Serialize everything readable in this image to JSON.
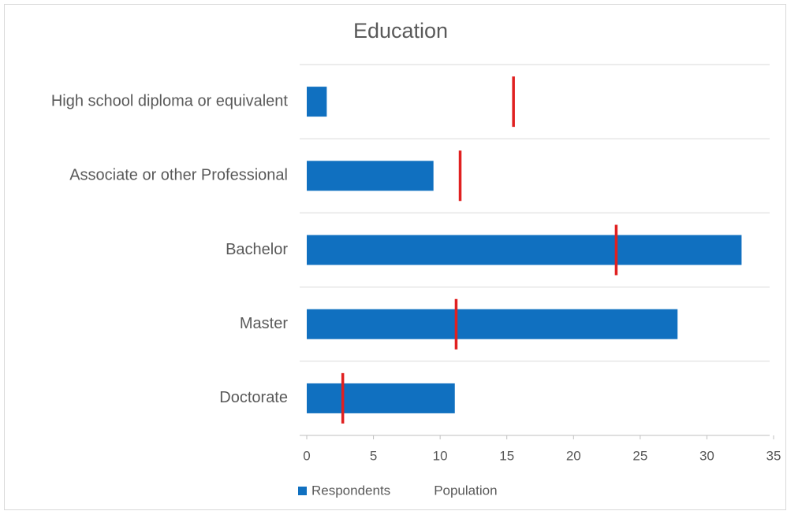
{
  "chart_data": {
    "type": "bar",
    "orientation": "horizontal",
    "title": "Education",
    "categories": [
      "High school diploma or equivalent",
      "Associate or other Professional",
      "Bachelor",
      "Master",
      "Doctorate"
    ],
    "series": [
      {
        "name": "Respondents",
        "type": "bar",
        "color": "#1070c0",
        "values": [
          1.5,
          9.5,
          32.6,
          27.8,
          11.1
        ]
      },
      {
        "name": "Population",
        "type": "marker",
        "color": "#e02020",
        "values": [
          15.5,
          11.5,
          23.2,
          11.2,
          2.7
        ]
      }
    ],
    "xlim": [
      0,
      35
    ],
    "xticks": [
      0,
      5,
      10,
      15,
      20,
      25,
      30,
      35
    ],
    "grid": true,
    "legend": "bottom"
  }
}
